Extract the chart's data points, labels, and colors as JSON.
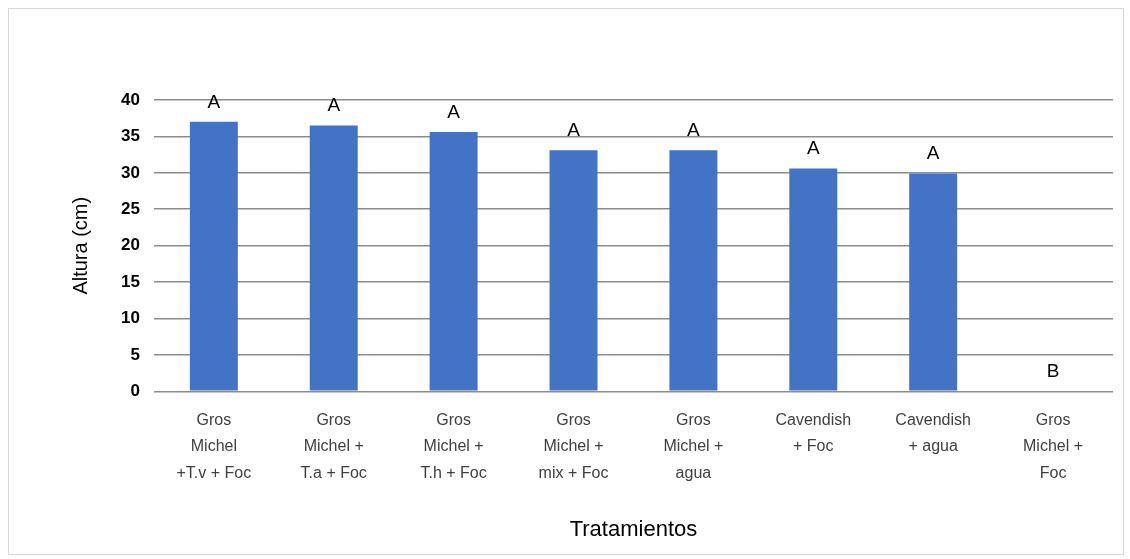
{
  "chart_data": {
    "type": "bar",
    "xlabel": "Tratamientos",
    "ylabel": "Altura (cm)",
    "categories": [
      "Gros Michel +T.v + Foc",
      "Gros Michel + T.a + Foc",
      "Gros Michel + T.h + Foc",
      "Gros Michel + mix + Foc",
      "Gros Michel + agua",
      "Cavendish + Foc",
      "Cavendish + agua",
      "Gros Michel + Foc"
    ],
    "values": [
      37.0,
      36.5,
      35.6,
      33.1,
      33.1,
      30.6,
      29.9,
      0
    ],
    "color": "#4472c4",
    "ylim": [
      0,
      40
    ],
    "yticks": [
      0,
      5,
      10,
      15,
      20,
      25,
      30,
      35,
      40
    ],
    "grid": "y",
    "annotations": [
      {
        "text": "A",
        "x": "Gros Michel +T.v + Foc",
        "y": 37.0
      },
      {
        "text": "A",
        "x": "Gros Michel + T.a + Foc",
        "y": 36.5
      },
      {
        "text": "A",
        "x": "Gros Michel + T.h + Foc",
        "y": 35.6
      },
      {
        "text": "A",
        "x": "Gros Michel + mix + Foc",
        "y": 33.1
      },
      {
        "text": "A",
        "x": "Gros Michel + agua",
        "y": 33.1
      },
      {
        "text": "A",
        "x": "Cavendish + Foc",
        "y": 30.6
      },
      {
        "text": "A",
        "x": "Cavendish + agua",
        "y": 29.9
      },
      {
        "text": "B",
        "x": "Gros Michel + Foc",
        "y": 0
      }
    ]
  }
}
